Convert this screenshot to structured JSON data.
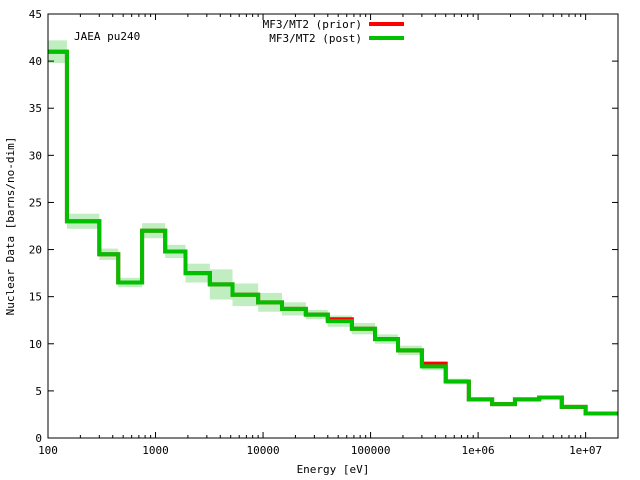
{
  "chart_data": {
    "type": "line",
    "title": "",
    "annotation": "JAEA pu240",
    "xlabel": "Energy [eV]",
    "ylabel": "Nuclear Data [barns/no-dim]",
    "xscale": "log",
    "xlim": [
      100,
      20000000
    ],
    "ylim": [
      0,
      45
    ],
    "x_ticks": [
      100,
      1000,
      10000,
      100000,
      1000000,
      10000000
    ],
    "x_tick_labels": [
      "100",
      "1000",
      "10000",
      "100000",
      "1e+06",
      "1e+07"
    ],
    "y_ticks": [
      0,
      5,
      10,
      15,
      20,
      25,
      30,
      35,
      40,
      45
    ],
    "y_tick_labels": [
      "0",
      "5",
      "10",
      "15",
      "20",
      "25",
      "30",
      "35",
      "40",
      "45"
    ],
    "legend_position": "top-center",
    "grid": false,
    "bin_edges": [
      100,
      150,
      300,
      450,
      750,
      1230,
      1900,
      3200,
      5200,
      9000,
      15000,
      25000,
      40000,
      67000,
      110000,
      180000,
      300000,
      500000,
      820000,
      1350000,
      2200000,
      3700000,
      6000000,
      10000000,
      20000000
    ],
    "series": [
      {
        "name": "MF3/MT2 (prior)",
        "color": "#ff0000",
        "values": [
          41.0,
          23.0,
          19.5,
          16.5,
          22.0,
          19.8,
          17.5,
          16.3,
          15.2,
          14.4,
          13.7,
          13.1,
          12.6,
          11.6,
          10.5,
          9.3,
          7.9,
          6.0,
          4.1,
          3.6,
          4.1,
          4.3,
          3.3,
          2.6
        ]
      },
      {
        "name": "MF3/MT2 (post)",
        "color": "#00c000",
        "values": [
          41.0,
          23.0,
          19.5,
          16.5,
          22.0,
          19.8,
          17.5,
          16.3,
          15.2,
          14.4,
          13.7,
          13.1,
          12.4,
          11.6,
          10.5,
          9.3,
          7.6,
          6.0,
          4.1,
          3.6,
          4.1,
          4.3,
          3.3,
          2.6
        ],
        "uncertainty": [
          1.2,
          0.8,
          0.6,
          0.5,
          0.8,
          0.7,
          1.0,
          1.6,
          1.2,
          1.0,
          0.7,
          0.5,
          0.6,
          0.6,
          0.5,
          0.5,
          0.4,
          0.3,
          0.2,
          0.2,
          0.2,
          0.2,
          0.2,
          0.15
        ]
      }
    ],
    "band_color": "#c0eec0"
  }
}
